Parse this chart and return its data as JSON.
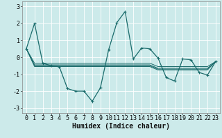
{
  "title": "",
  "xlabel": "Humidex (Indice chaleur)",
  "ylabel": "",
  "bg_color": "#cceaea",
  "grid_color": "#ffffff",
  "line_color": "#1a6b6b",
  "xlim": [
    -0.5,
    23.5
  ],
  "ylim": [
    -3.3,
    3.3
  ],
  "yticks": [
    -3,
    -2,
    -1,
    0,
    1,
    2,
    3
  ],
  "xticks": [
    0,
    1,
    2,
    3,
    4,
    5,
    6,
    7,
    8,
    9,
    10,
    11,
    12,
    13,
    14,
    15,
    16,
    17,
    18,
    19,
    20,
    21,
    22,
    23
  ],
  "series": [
    [
      0.5,
      2.0,
      -0.35,
      -0.5,
      -0.55,
      -1.85,
      -2.0,
      -2.0,
      -2.6,
      -1.8,
      0.45,
      2.05,
      2.7,
      -0.1,
      0.55,
      0.5,
      -0.05,
      -1.2,
      -1.4,
      -0.1,
      -0.15,
      -0.9,
      -1.05,
      -0.25
    ],
    [
      0.5,
      -0.35,
      -0.35,
      -0.35,
      -0.35,
      -0.35,
      -0.35,
      -0.35,
      -0.35,
      -0.35,
      -0.35,
      -0.35,
      -0.35,
      -0.35,
      -0.35,
      -0.35,
      -0.55,
      -0.55,
      -0.55,
      -0.55,
      -0.55,
      -0.55,
      -0.55,
      -0.25
    ],
    [
      0.5,
      -0.45,
      -0.45,
      -0.45,
      -0.45,
      -0.45,
      -0.45,
      -0.45,
      -0.45,
      -0.45,
      -0.45,
      -0.45,
      -0.45,
      -0.45,
      -0.45,
      -0.45,
      -0.65,
      -0.65,
      -0.65,
      -0.65,
      -0.65,
      -0.65,
      -0.65,
      -0.25
    ],
    [
      0.5,
      -0.5,
      -0.5,
      -0.5,
      -0.5,
      -0.5,
      -0.5,
      -0.5,
      -0.5,
      -0.5,
      -0.5,
      -0.5,
      -0.5,
      -0.5,
      -0.5,
      -0.5,
      -0.7,
      -0.7,
      -0.7,
      -0.7,
      -0.7,
      -0.7,
      -0.7,
      -0.25
    ],
    [
      0.5,
      -0.55,
      -0.55,
      -0.55,
      -0.55,
      -0.55,
      -0.55,
      -0.55,
      -0.55,
      -0.55,
      -0.55,
      -0.55,
      -0.55,
      -0.55,
      -0.55,
      -0.55,
      -0.75,
      -0.75,
      -0.75,
      -0.75,
      -0.75,
      -0.75,
      -0.75,
      -0.25
    ]
  ],
  "fontsize_label": 7,
  "tick_fontsize": 6,
  "linewidth_main": 0.9,
  "linewidth_flat": 0.7,
  "markersize": 3.0
}
